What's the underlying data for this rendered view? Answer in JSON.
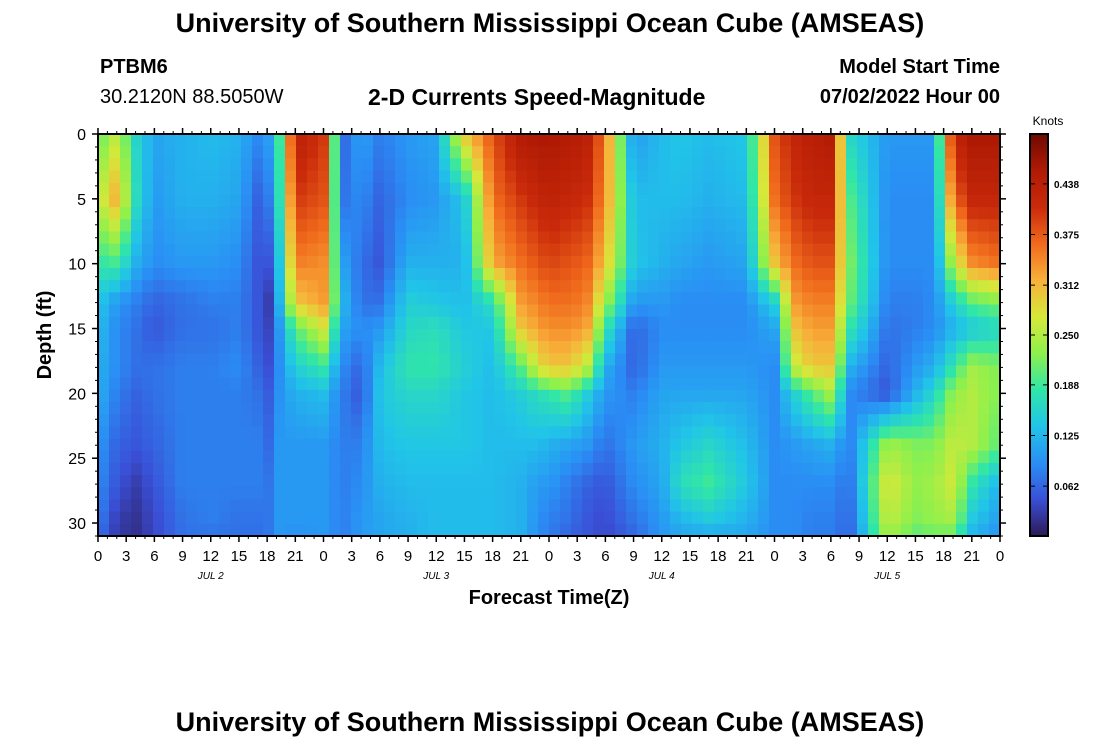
{
  "page": {
    "title": "University of Southern Mississippi Ocean Cube (AMSEAS)",
    "footer_title": "University of Southern Mississippi Ocean Cube (AMSEAS)",
    "station": "PTBM6",
    "coordinates": "30.2120N  88.5050W",
    "subtitle": "2-D Currents Speed-Magnitude",
    "model_start_label": "Model Start Time",
    "model_start_value": "07/02/2022 Hour 00"
  },
  "chart_data": {
    "type": "heatmap",
    "title": "2-D Currents Speed-Magnitude",
    "xlabel": "Forecast Time(Z)",
    "ylabel": "Depth (ft)",
    "x_tick_labels": [
      "0",
      "3",
      "6",
      "9",
      "12",
      "15",
      "18",
      "21",
      "0",
      "3",
      "6",
      "9",
      "12",
      "15",
      "18",
      "21",
      "0",
      "3",
      "6",
      "9",
      "12",
      "15",
      "18",
      "21",
      "0",
      "3",
      "6",
      "9",
      "12",
      "15",
      "18",
      "21",
      "0"
    ],
    "x_hours": [
      0,
      3,
      6,
      9,
      12,
      15,
      18,
      21,
      24,
      27,
      30,
      33,
      36,
      39,
      42,
      45,
      48,
      51,
      54,
      57,
      60,
      63,
      66,
      69,
      72,
      75,
      78,
      81,
      84,
      87,
      90,
      93,
      96
    ],
    "day_labels": [
      {
        "label": "JUL 2",
        "hour": 12
      },
      {
        "label": "JUL 3",
        "hour": 36
      },
      {
        "label": "JUL 4",
        "hour": 60
      },
      {
        "label": "JUL 5",
        "hour": 84
      }
    ],
    "y_ticks": [
      0,
      5,
      10,
      15,
      20,
      25,
      30
    ],
    "y_range": [
      0,
      31
    ],
    "x_range": [
      0,
      96
    ],
    "colorbar": {
      "title": "Knots",
      "tick_labels": [
        "0.438",
        "0.375",
        "0.312",
        "0.250",
        "0.188",
        "0.125",
        "0.062"
      ],
      "tick_values": [
        0.438,
        0.375,
        0.312,
        0.25,
        0.188,
        0.125,
        0.062
      ],
      "range": [
        0,
        0.5
      ],
      "colors": [
        "#2c1a55",
        "#3a4fd6",
        "#2a8ef5",
        "#21c4e8",
        "#30e6a8",
        "#8ef04c",
        "#d6e83a",
        "#f8b03a",
        "#f06a1c",
        "#c92a0a",
        "#b01a04",
        "#6e0a02"
      ]
    },
    "speed_grid": {
      "times": [
        0,
        2,
        4,
        6,
        9,
        12,
        15,
        17,
        18,
        19,
        21,
        24,
        26,
        28,
        30,
        33,
        36,
        39,
        42,
        45,
        47,
        48,
        50,
        52,
        54,
        57,
        60,
        62,
        65,
        69,
        72,
        74,
        76,
        78,
        80,
        84,
        87,
        89,
        91,
        93,
        96
      ],
      "depths": [
        0,
        5,
        10,
        13,
        15,
        18,
        20,
        24,
        27,
        30,
        31
      ],
      "values_knots": [
        [
          0.2,
          0.25,
          0.18,
          0.14,
          0.13,
          0.12,
          0.12,
          0.1,
          0.09,
          0.08,
          0.07
        ],
        [
          0.26,
          0.32,
          0.19,
          0.1,
          0.09,
          0.09,
          0.08,
          0.06,
          0.05,
          0.03,
          0.03
        ],
        [
          0.16,
          0.17,
          0.12,
          0.08,
          0.07,
          0.07,
          0.06,
          0.05,
          0.03,
          0.02,
          0.02
        ],
        [
          0.11,
          0.1,
          0.09,
          0.06,
          0.05,
          0.07,
          0.07,
          0.06,
          0.05,
          0.04,
          0.04
        ],
        [
          0.12,
          0.12,
          0.1,
          0.07,
          0.07,
          0.08,
          0.08,
          0.08,
          0.08,
          0.07,
          0.07
        ],
        [
          0.13,
          0.12,
          0.1,
          0.08,
          0.07,
          0.08,
          0.08,
          0.08,
          0.08,
          0.08,
          0.07
        ],
        [
          0.12,
          0.11,
          0.09,
          0.08,
          0.08,
          0.09,
          0.08,
          0.08,
          0.08,
          0.07,
          0.07
        ],
        [
          0.09,
          0.06,
          0.05,
          0.05,
          0.05,
          0.06,
          0.07,
          0.08,
          0.08,
          0.07,
          0.07
        ],
        [
          0.1,
          0.07,
          0.04,
          0.02,
          0.03,
          0.04,
          0.05,
          0.06,
          0.07,
          0.07,
          0.07
        ],
        [
          0.14,
          0.13,
          0.1,
          0.09,
          0.08,
          0.08,
          0.09,
          0.1,
          0.1,
          0.1,
          0.1
        ],
        [
          0.44,
          0.4,
          0.35,
          0.3,
          0.2,
          0.15,
          0.12,
          0.1,
          0.1,
          0.1,
          0.09
        ],
        [
          0.4,
          0.38,
          0.34,
          0.33,
          0.27,
          0.18,
          0.13,
          0.1,
          0.1,
          0.1,
          0.1
        ],
        [
          0.06,
          0.07,
          0.11,
          0.13,
          0.11,
          0.09,
          0.08,
          0.08,
          0.08,
          0.08,
          0.08
        ],
        [
          0.11,
          0.09,
          0.07,
          0.07,
          0.09,
          0.06,
          0.05,
          0.08,
          0.09,
          0.1,
          0.1
        ],
        [
          0.08,
          0.06,
          0.05,
          0.07,
          0.1,
          0.13,
          0.14,
          0.13,
          0.12,
          0.11,
          0.11
        ],
        [
          0.1,
          0.09,
          0.12,
          0.15,
          0.16,
          0.18,
          0.16,
          0.14,
          0.13,
          0.12,
          0.12
        ],
        [
          0.11,
          0.1,
          0.12,
          0.14,
          0.17,
          0.18,
          0.16,
          0.14,
          0.13,
          0.13,
          0.13
        ],
        [
          0.3,
          0.14,
          0.12,
          0.13,
          0.14,
          0.15,
          0.14,
          0.14,
          0.13,
          0.13,
          0.13
        ],
        [
          0.38,
          0.36,
          0.32,
          0.17,
          0.14,
          0.13,
          0.13,
          0.13,
          0.13,
          0.13,
          0.13
        ],
        [
          0.45,
          0.4,
          0.36,
          0.33,
          0.3,
          0.2,
          0.15,
          0.13,
          0.12,
          0.12,
          0.12
        ],
        [
          0.46,
          0.42,
          0.38,
          0.35,
          0.33,
          0.28,
          0.17,
          0.13,
          0.1,
          0.09,
          0.09
        ],
        [
          0.46,
          0.43,
          0.39,
          0.36,
          0.34,
          0.3,
          0.18,
          0.12,
          0.1,
          0.08,
          0.08
        ],
        [
          0.45,
          0.42,
          0.38,
          0.36,
          0.34,
          0.3,
          0.2,
          0.11,
          0.08,
          0.07,
          0.06
        ],
        [
          0.44,
          0.41,
          0.37,
          0.35,
          0.33,
          0.26,
          0.15,
          0.1,
          0.06,
          0.05,
          0.05
        ],
        [
          0.35,
          0.34,
          0.3,
          0.24,
          0.18,
          0.12,
          0.1,
          0.07,
          0.05,
          0.04,
          0.04
        ],
        [
          0.1,
          0.13,
          0.14,
          0.1,
          0.06,
          0.06,
          0.08,
          0.1,
          0.09,
          0.07,
          0.06
        ],
        [
          0.13,
          0.13,
          0.12,
          0.1,
          0.09,
          0.1,
          0.11,
          0.12,
          0.11,
          0.1,
          0.1
        ],
        [
          0.14,
          0.13,
          0.11,
          0.09,
          0.09,
          0.1,
          0.11,
          0.14,
          0.17,
          0.12,
          0.11
        ],
        [
          0.13,
          0.12,
          0.1,
          0.09,
          0.09,
          0.1,
          0.11,
          0.16,
          0.19,
          0.14,
          0.11
        ],
        [
          0.14,
          0.13,
          0.11,
          0.09,
          0.09,
          0.1,
          0.11,
          0.13,
          0.14,
          0.12,
          0.11
        ],
        [
          0.38,
          0.36,
          0.3,
          0.15,
          0.11,
          0.09,
          0.09,
          0.09,
          0.09,
          0.09,
          0.09
        ],
        [
          0.42,
          0.4,
          0.36,
          0.33,
          0.3,
          0.26,
          0.15,
          0.1,
          0.09,
          0.09,
          0.09
        ],
        [
          0.44,
          0.42,
          0.38,
          0.35,
          0.33,
          0.3,
          0.2,
          0.11,
          0.09,
          0.08,
          0.08
        ],
        [
          0.45,
          0.42,
          0.38,
          0.35,
          0.33,
          0.3,
          0.24,
          0.12,
          0.09,
          0.08,
          0.08
        ],
        [
          0.16,
          0.2,
          0.22,
          0.21,
          0.18,
          0.12,
          0.09,
          0.08,
          0.07,
          0.06,
          0.06
        ],
        [
          0.1,
          0.09,
          0.09,
          0.08,
          0.07,
          0.06,
          0.05,
          0.24,
          0.28,
          0.26,
          0.24
        ],
        [
          0.1,
          0.09,
          0.09,
          0.08,
          0.08,
          0.1,
          0.12,
          0.22,
          0.23,
          0.22,
          0.2
        ],
        [
          0.1,
          0.09,
          0.09,
          0.09,
          0.09,
          0.12,
          0.16,
          0.22,
          0.24,
          0.23,
          0.21
        ],
        [
          0.42,
          0.36,
          0.25,
          0.15,
          0.12,
          0.18,
          0.23,
          0.26,
          0.27,
          0.24,
          0.2
        ],
        [
          0.46,
          0.42,
          0.34,
          0.2,
          0.14,
          0.24,
          0.25,
          0.25,
          0.18,
          0.14,
          0.12
        ],
        [
          0.46,
          0.42,
          0.36,
          0.22,
          0.16,
          0.22,
          0.22,
          0.2,
          0.12,
          0.1,
          0.09
        ]
      ]
    }
  }
}
